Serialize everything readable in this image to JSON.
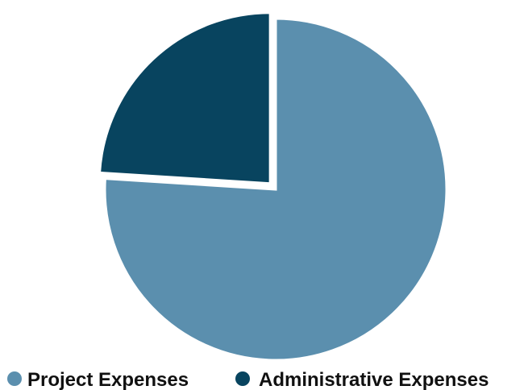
{
  "chart_data": {
    "type": "pie",
    "title": "",
    "legend_position": "bottom",
    "exploded": true,
    "start_angle_deg": 0,
    "direction": "clockwise",
    "series": [
      {
        "name": "Project Expenses",
        "value": 76,
        "color": "#5b8fae"
      },
      {
        "name": "Administrative Expenses",
        "value": 24,
        "color": "#08445f"
      }
    ]
  }
}
